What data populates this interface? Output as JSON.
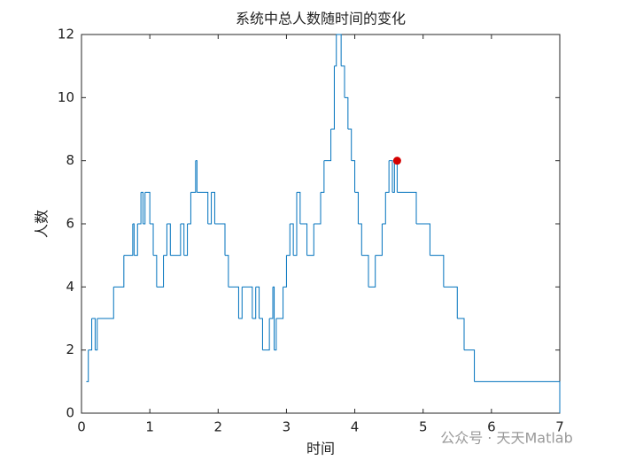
{
  "chart_data": {
    "type": "stairs",
    "title": "系统中总人数随时间的变化",
    "xlabel": "时间",
    "ylabel": "人数",
    "watermark": "公众号 · 天天Matlab",
    "x": [
      0.07,
      0.1,
      0.15,
      0.2,
      0.23,
      0.47,
      0.62,
      0.75,
      0.77,
      0.82,
      0.87,
      0.9,
      0.93,
      1.0,
      1.05,
      1.1,
      1.2,
      1.25,
      1.3,
      1.45,
      1.5,
      1.55,
      1.6,
      1.67,
      1.69,
      1.85,
      1.9,
      1.95,
      2.1,
      2.15,
      2.3,
      2.35,
      2.5,
      2.55,
      2.6,
      2.65,
      2.75,
      2.8,
      2.82,
      2.85,
      2.95,
      3.0,
      3.05,
      3.1,
      3.15,
      3.2,
      3.3,
      3.4,
      3.5,
      3.55,
      3.65,
      3.7,
      3.73,
      3.8,
      3.85,
      3.9,
      3.95,
      4.0,
      4.05,
      4.1,
      4.2,
      4.3,
      4.4,
      4.45,
      4.5,
      4.55,
      4.58,
      4.62,
      4.9,
      5.1,
      5.3,
      5.5,
      5.6,
      5.75,
      7.0
    ],
    "values": [
      1,
      2,
      3,
      2,
      3,
      4,
      5,
      6,
      5,
      6,
      7,
      6,
      7,
      6,
      5,
      4,
      5,
      6,
      5,
      6,
      5,
      6,
      7,
      8,
      7,
      6,
      7,
      6,
      5,
      4,
      3,
      4,
      3,
      4,
      3,
      2,
      3,
      4,
      2,
      3,
      4,
      5,
      6,
      5,
      7,
      6,
      5,
      6,
      7,
      8,
      9,
      11,
      12,
      11,
      10,
      9,
      8,
      7,
      6,
      5,
      4,
      5,
      6,
      7,
      8,
      7,
      8,
      7,
      6,
      5,
      4,
      3,
      2,
      1,
      0
    ],
    "color": "#0072bd",
    "marker": {
      "x": 4.62,
      "y": 8,
      "color": "#d40000"
    },
    "xlim": [
      0,
      7
    ],
    "xticks": [
      0,
      1,
      2,
      3,
      4,
      5,
      6,
      7
    ],
    "ylim": [
      0,
      12
    ],
    "yticks": [
      0,
      2,
      4,
      6,
      8,
      10,
      12
    ]
  }
}
